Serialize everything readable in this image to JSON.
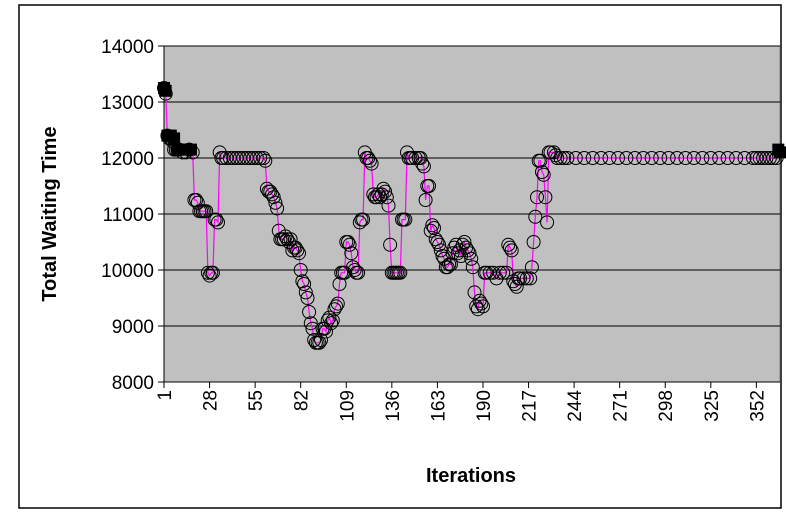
{
  "chart_data": {
    "type": "line",
    "title": "",
    "xlabel": "Iterations",
    "ylabel": "Total Waiting Time",
    "ylim": [
      8000,
      14000
    ],
    "yticks": [
      8000,
      9000,
      10000,
      11000,
      12000,
      13000,
      14000
    ],
    "xlim": [
      1,
      366
    ],
    "xticks": [
      1,
      28,
      55,
      82,
      109,
      136,
      163,
      190,
      217,
      244,
      271,
      298,
      325,
      352
    ],
    "grid": true,
    "plot_background": "#c0c0c0",
    "series": [
      {
        "style": "line-with-open-circles",
        "line_color": "#ff00ff",
        "marker_color": "#000000",
        "points": [
          [
            1,
            13250
          ],
          [
            2,
            13150
          ],
          [
            3,
            12400
          ],
          [
            4,
            12350
          ],
          [
            5,
            12350
          ],
          [
            6,
            12300
          ],
          [
            7,
            12150
          ],
          [
            8,
            12150
          ],
          [
            9,
            12150
          ],
          [
            10,
            12150
          ],
          [
            12,
            12100
          ],
          [
            14,
            12100
          ],
          [
            16,
            12150
          ],
          [
            18,
            12100
          ],
          [
            19,
            11250
          ],
          [
            20,
            11250
          ],
          [
            21,
            11200
          ],
          [
            22,
            11050
          ],
          [
            23,
            11050
          ],
          [
            24,
            11050
          ],
          [
            25,
            11050
          ],
          [
            26,
            11050
          ],
          [
            27,
            9950
          ],
          [
            28,
            9900
          ],
          [
            29,
            9950
          ],
          [
            30,
            9950
          ],
          [
            31,
            10900
          ],
          [
            32,
            10900
          ],
          [
            33,
            10850
          ],
          [
            34,
            12100
          ],
          [
            35,
            12000
          ],
          [
            36,
            12000
          ],
          [
            38,
            12000
          ],
          [
            40,
            12000
          ],
          [
            42,
            12000
          ],
          [
            44,
            12000
          ],
          [
            46,
            12000
          ],
          [
            48,
            12000
          ],
          [
            50,
            12000
          ],
          [
            52,
            12000
          ],
          [
            54,
            12000
          ],
          [
            56,
            12000
          ],
          [
            58,
            12000
          ],
          [
            60,
            12000
          ],
          [
            61,
            11950
          ],
          [
            62,
            11450
          ],
          [
            63,
            11400
          ],
          [
            64,
            11400
          ],
          [
            65,
            11350
          ],
          [
            66,
            11300
          ],
          [
            67,
            11200
          ],
          [
            68,
            11100
          ],
          [
            69,
            10700
          ],
          [
            70,
            10550
          ],
          [
            71,
            10550
          ],
          [
            72,
            10550
          ],
          [
            73,
            10600
          ],
          [
            74,
            10550
          ],
          [
            75,
            10500
          ],
          [
            76,
            10550
          ],
          [
            77,
            10350
          ],
          [
            78,
            10400
          ],
          [
            79,
            10400
          ],
          [
            80,
            10350
          ],
          [
            81,
            10300
          ],
          [
            82,
            10000
          ],
          [
            83,
            9800
          ],
          [
            84,
            9750
          ],
          [
            85,
            9600
          ],
          [
            86,
            9500
          ],
          [
            87,
            9250
          ],
          [
            88,
            9050
          ],
          [
            89,
            8950
          ],
          [
            90,
            8750
          ],
          [
            91,
            8700
          ],
          [
            92,
            8700
          ],
          [
            93,
            8700
          ],
          [
            94,
            8750
          ],
          [
            95,
            8950
          ],
          [
            96,
            8950
          ],
          [
            97,
            8900
          ],
          [
            98,
            9100
          ],
          [
            99,
            9150
          ],
          [
            100,
            9050
          ],
          [
            101,
            9100
          ],
          [
            102,
            9300
          ],
          [
            103,
            9350
          ],
          [
            104,
            9400
          ],
          [
            105,
            9750
          ],
          [
            106,
            9950
          ],
          [
            107,
            9950
          ],
          [
            108,
            9950
          ],
          [
            109,
            10500
          ],
          [
            110,
            10500
          ],
          [
            111,
            10450
          ],
          [
            112,
            10300
          ],
          [
            113,
            10050
          ],
          [
            114,
            10000
          ],
          [
            115,
            9950
          ],
          [
            116,
            9950
          ],
          [
            117,
            10850
          ],
          [
            118,
            10900
          ],
          [
            119,
            10900
          ],
          [
            120,
            12100
          ],
          [
            121,
            12000
          ],
          [
            122,
            12000
          ],
          [
            123,
            11950
          ],
          [
            124,
            11900
          ],
          [
            125,
            11350
          ],
          [
            126,
            11300
          ],
          [
            127,
            11300
          ],
          [
            128,
            11350
          ],
          [
            129,
            11300
          ],
          [
            130,
            11350
          ],
          [
            131,
            11450
          ],
          [
            132,
            11400
          ],
          [
            133,
            11300
          ],
          [
            134,
            11150
          ],
          [
            135,
            10450
          ],
          [
            136,
            9950
          ],
          [
            137,
            9950
          ],
          [
            138,
            9950
          ],
          [
            139,
            9950
          ],
          [
            140,
            9950
          ],
          [
            141,
            9950
          ],
          [
            142,
            10900
          ],
          [
            143,
            10900
          ],
          [
            144,
            10900
          ],
          [
            145,
            12100
          ],
          [
            146,
            12000
          ],
          [
            147,
            12000
          ],
          [
            148,
            12000
          ],
          [
            150,
            12000
          ],
          [
            152,
            12000
          ],
          [
            153,
            12000
          ],
          [
            154,
            11900
          ],
          [
            155,
            11850
          ],
          [
            156,
            11250
          ],
          [
            157,
            11500
          ],
          [
            158,
            11500
          ],
          [
            159,
            10700
          ],
          [
            160,
            10800
          ],
          [
            161,
            10750
          ],
          [
            162,
            10550
          ],
          [
            163,
            10500
          ],
          [
            164,
            10450
          ],
          [
            165,
            10350
          ],
          [
            166,
            10250
          ],
          [
            167,
            10200
          ],
          [
            168,
            10050
          ],
          [
            169,
            10050
          ],
          [
            170,
            10100
          ],
          [
            171,
            10100
          ],
          [
            172,
            10300
          ],
          [
            173,
            10400
          ],
          [
            174,
            10450
          ],
          [
            175,
            10300
          ],
          [
            176,
            10350
          ],
          [
            177,
            10250
          ],
          [
            178,
            10450
          ],
          [
            179,
            10500
          ],
          [
            180,
            10400
          ],
          [
            181,
            10350
          ],
          [
            182,
            10300
          ],
          [
            183,
            10200
          ],
          [
            184,
            10050
          ],
          [
            185,
            9600
          ],
          [
            186,
            9350
          ],
          [
            187,
            9300
          ],
          [
            188,
            9450
          ],
          [
            189,
            9400
          ],
          [
            190,
            9350
          ],
          [
            191,
            9950
          ],
          [
            192,
            9950
          ],
          [
            194,
            9950
          ],
          [
            196,
            9950
          ],
          [
            198,
            9850
          ],
          [
            200,
            9950
          ],
          [
            202,
            9950
          ],
          [
            204,
            9950
          ],
          [
            205,
            10450
          ],
          [
            206,
            10400
          ],
          [
            207,
            10350
          ],
          [
            208,
            9800
          ],
          [
            209,
            9750
          ],
          [
            210,
            9700
          ],
          [
            211,
            9850
          ],
          [
            212,
            9850
          ],
          [
            214,
            9850
          ],
          [
            216,
            9850
          ],
          [
            218,
            9850
          ],
          [
            219,
            10050
          ],
          [
            220,
            10500
          ],
          [
            221,
            10950
          ],
          [
            222,
            11300
          ],
          [
            223,
            11950
          ],
          [
            224,
            11950
          ],
          [
            225,
            11750
          ],
          [
            226,
            11700
          ],
          [
            227,
            11300
          ],
          [
            228,
            10850
          ],
          [
            229,
            12100
          ],
          [
            230,
            12100
          ],
          [
            232,
            12100
          ],
          [
            233,
            12050
          ],
          [
            234,
            12000
          ],
          [
            236,
            12000
          ],
          [
            238,
            12000
          ],
          [
            240,
            12000
          ],
          [
            245,
            12000
          ],
          [
            250,
            12000
          ],
          [
            255,
            12000
          ],
          [
            260,
            12000
          ],
          [
            265,
            12000
          ],
          [
            270,
            12000
          ],
          [
            275,
            12000
          ],
          [
            280,
            12000
          ],
          [
            285,
            12000
          ],
          [
            290,
            12000
          ],
          [
            295,
            12000
          ],
          [
            300,
            12000
          ],
          [
            305,
            12000
          ],
          [
            310,
            12000
          ],
          [
            315,
            12000
          ],
          [
            320,
            12000
          ],
          [
            325,
            12000
          ],
          [
            330,
            12000
          ],
          [
            335,
            12000
          ],
          [
            340,
            12000
          ],
          [
            345,
            12000
          ],
          [
            350,
            12000
          ],
          [
            352,
            12000
          ],
          [
            354,
            12000
          ],
          [
            356,
            12000
          ],
          [
            358,
            12000
          ],
          [
            360,
            12000
          ],
          [
            362,
            12000
          ],
          [
            364,
            12000
          ]
        ]
      },
      {
        "style": "filled-square",
        "marker_color": "#000000",
        "points": [
          [
            1,
            13250
          ],
          [
            2,
            13200
          ],
          [
            3,
            12400
          ],
          [
            5,
            12400
          ],
          [
            7,
            12350
          ],
          [
            9,
            12150
          ],
          [
            11,
            12150
          ],
          [
            14,
            12150
          ],
          [
            17,
            12150
          ],
          [
            365,
            12150
          ],
          [
            366,
            12100
          ]
        ]
      }
    ]
  }
}
